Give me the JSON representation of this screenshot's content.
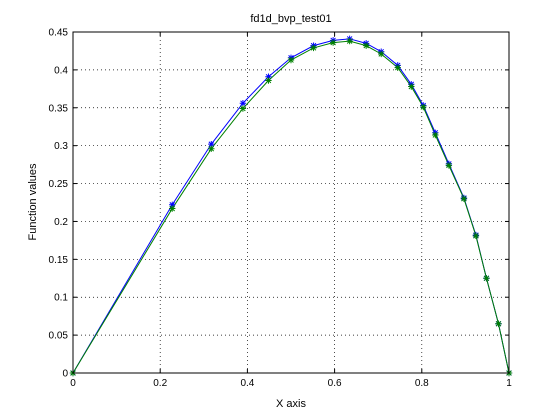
{
  "chart_data": {
    "type": "line",
    "title": "fd1d_bvp_test01",
    "xlabel": "X axis",
    "ylabel": "Function values",
    "xlim": [
      0,
      1
    ],
    "ylim": [
      0,
      0.45
    ],
    "grid": true,
    "x_ticks": [
      "0",
      "0.2",
      "0.4",
      "0.6",
      "0.8",
      "1"
    ],
    "y_ticks": [
      "0",
      "0.05",
      "0.1",
      "0.15",
      "0.2",
      "0.25",
      "0.3",
      "0.35",
      "0.4",
      "0.45"
    ],
    "series": [
      {
        "color": "#0000ff",
        "marker": "*",
        "x": [
          0,
          0.2276,
          0.3172,
          0.3897,
          0.4483,
          0.5,
          0.5517,
          0.5966,
          0.6345,
          0.6724,
          0.7069,
          0.7448,
          0.7759,
          0.8034,
          0.831,
          0.8621,
          0.8966,
          0.9241,
          0.9483,
          0.9759,
          1.0
        ],
        "y": [
          0,
          0.222,
          0.302,
          0.356,
          0.391,
          0.416,
          0.432,
          0.439,
          0.441,
          0.435,
          0.424,
          0.406,
          0.381,
          0.353,
          0.317,
          0.276,
          0.231,
          0.182,
          0.125,
          0.065,
          0
        ]
      },
      {
        "color": "#008000",
        "marker": "*",
        "x": [
          0,
          0.2276,
          0.3172,
          0.3897,
          0.4483,
          0.5,
          0.5517,
          0.5966,
          0.6345,
          0.6724,
          0.7069,
          0.7448,
          0.7759,
          0.8034,
          0.831,
          0.8621,
          0.8966,
          0.9241,
          0.9483,
          0.9759,
          1.0
        ],
        "y": [
          0,
          0.217,
          0.296,
          0.349,
          0.386,
          0.413,
          0.429,
          0.436,
          0.438,
          0.432,
          0.421,
          0.403,
          0.378,
          0.351,
          0.314,
          0.274,
          0.23,
          0.181,
          0.125,
          0.065,
          0
        ]
      }
    ]
  }
}
